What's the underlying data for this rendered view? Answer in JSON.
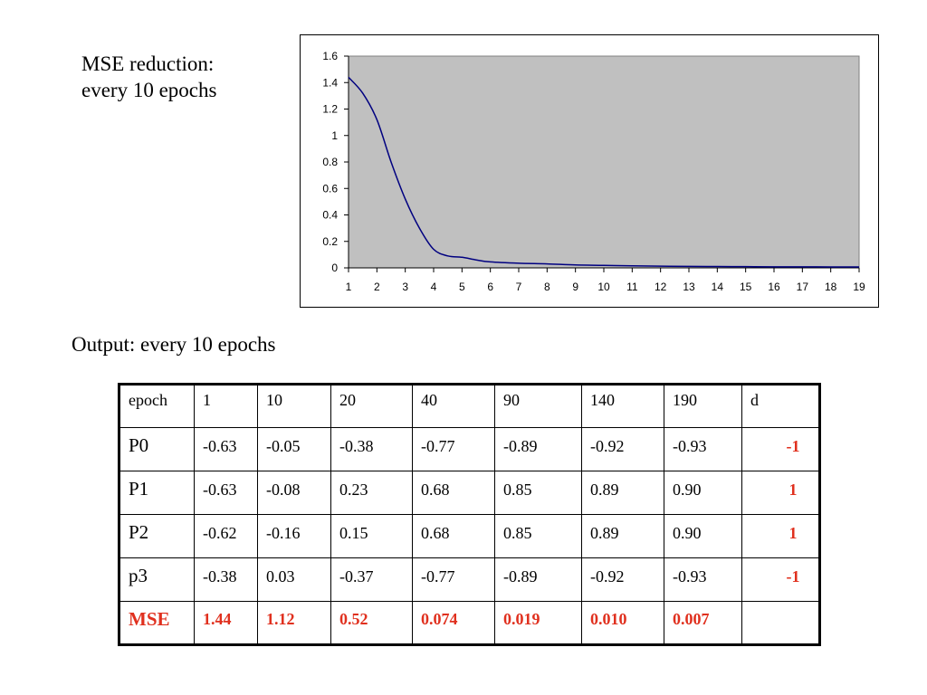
{
  "caption_top": {
    "line1": "MSE reduction:",
    "line2": "every 10 epochs"
  },
  "caption_output": "Output: every 10 epochs",
  "chart_data": {
    "type": "area",
    "x": [
      1,
      1.5,
      2,
      2.5,
      3,
      3.5,
      4,
      4.5,
      5,
      5.5,
      6,
      7,
      8,
      9,
      10,
      11,
      12,
      13,
      14,
      15,
      16,
      17,
      18,
      19
    ],
    "y": [
      1.44,
      1.32,
      1.12,
      0.8,
      0.52,
      0.3,
      0.14,
      0.09,
      0.08,
      0.06,
      0.045,
      0.035,
      0.03,
      0.022,
      0.019,
      0.015,
      0.013,
      0.011,
      0.01,
      0.009,
      0.008,
      0.008,
      0.007,
      0.007
    ],
    "x_ticks": [
      "1",
      "2",
      "3",
      "4",
      "5",
      "6",
      "7",
      "8",
      "9",
      "10",
      "11",
      "12",
      "13",
      "14",
      "15",
      "16",
      "17",
      "18",
      "19"
    ],
    "y_ticks": [
      "0",
      "0.2",
      "0.4",
      "0.6",
      "0.8",
      "1",
      "1.2",
      "1.4",
      "1.6"
    ],
    "xlim": [
      1,
      19
    ],
    "ylim": [
      0,
      1.6
    ],
    "plot_background": "#c0c0c0",
    "line_color": "#000080",
    "grid": false,
    "legend": "none"
  },
  "table": {
    "header": [
      "epoch",
      "1",
      "10",
      "20",
      "40",
      "90",
      "140",
      "190",
      "d"
    ],
    "rows": [
      {
        "label": "P0",
        "values": [
          "-0.63",
          "-0.05",
          "-0.38",
          "-0.77",
          "-0.89",
          "-0.92",
          "-0.93"
        ],
        "d": "-1"
      },
      {
        "label": "P1",
        "values": [
          "-0.63",
          "-0.08",
          "0.23",
          "0.68",
          "0.85",
          "0.89",
          "0.90"
        ],
        "d": "1"
      },
      {
        "label": "P2",
        "values": [
          "-0.62",
          "-0.16",
          "0.15",
          "0.68",
          "0.85",
          "0.89",
          "0.90"
        ],
        "d": "1"
      },
      {
        "label": "p3",
        "values": [
          "-0.38",
          "0.03",
          "-0.37",
          "-0.77",
          "-0.89",
          "-0.92",
          "-0.93"
        ],
        "d": "-1"
      }
    ],
    "mse": {
      "label": "MSE",
      "values": [
        "1.44",
        "1.12",
        "0.52",
        "0.074",
        "0.019",
        "0.010",
        "0.007"
      ],
      "d": ""
    },
    "accent_color": "#e0301e"
  }
}
